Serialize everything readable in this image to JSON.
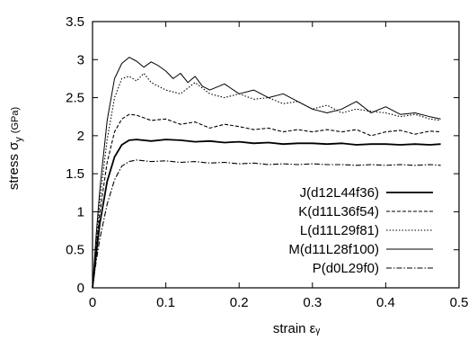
{
  "chart_data": {
    "type": "line",
    "title": "",
    "xlabel": "strain  εᵧ",
    "ylabel_main": "stress  σ",
    "ylabel_sub": "y",
    "ylabel_unit": "(GPa)",
    "xlim": [
      0,
      0.5
    ],
    "ylim": [
      0,
      3.5
    ],
    "xticks": [
      0,
      0.1,
      0.2,
      0.3,
      0.4,
      0.5
    ],
    "xtick_labels": [
      "0",
      "0.1",
      "0.2",
      "0.3",
      "0.4",
      "0.5"
    ],
    "yticks": [
      0,
      0.5,
      1,
      1.5,
      2,
      2.5,
      3,
      3.5
    ],
    "ytick_labels": [
      "0",
      "0.5",
      "1",
      "1.5",
      "2",
      "2.5",
      "3",
      "3.5"
    ],
    "grid": false,
    "legend_position": "bottom-right",
    "series": [
      {
        "name": "J(d12L44f36)",
        "color": "#000000",
        "dash": "solid",
        "x": [
          0,
          0.005,
          0.01,
          0.02,
          0.03,
          0.04,
          0.05,
          0.06,
          0.08,
          0.1,
          0.12,
          0.14,
          0.16,
          0.18,
          0.2,
          0.22,
          0.24,
          0.26,
          0.28,
          0.3,
          0.32,
          0.34,
          0.36,
          0.38,
          0.4,
          0.42,
          0.44,
          0.46,
          0.475
        ],
        "y": [
          0,
          0.45,
          0.85,
          1.4,
          1.72,
          1.88,
          1.94,
          1.95,
          1.93,
          1.95,
          1.94,
          1.92,
          1.93,
          1.91,
          1.92,
          1.9,
          1.91,
          1.89,
          1.9,
          1.9,
          1.89,
          1.9,
          1.88,
          1.89,
          1.89,
          1.88,
          1.89,
          1.88,
          1.89
        ]
      },
      {
        "name": "K(d11L36f54)",
        "color": "#000000",
        "dash": "4,2",
        "x": [
          0,
          0.005,
          0.01,
          0.02,
          0.03,
          0.04,
          0.05,
          0.06,
          0.08,
          0.1,
          0.12,
          0.14,
          0.16,
          0.18,
          0.2,
          0.22,
          0.24,
          0.26,
          0.28,
          0.3,
          0.32,
          0.34,
          0.36,
          0.38,
          0.4,
          0.42,
          0.44,
          0.46,
          0.475
        ],
        "y": [
          0,
          0.55,
          1.0,
          1.65,
          2.05,
          2.22,
          2.28,
          2.27,
          2.2,
          2.22,
          2.15,
          2.18,
          2.1,
          2.15,
          2.12,
          2.08,
          2.1,
          2.05,
          2.08,
          2.05,
          2.08,
          2.05,
          2.08,
          2.0,
          2.05,
          2.07,
          2.02,
          2.06,
          2.05
        ]
      },
      {
        "name": "L(d11L29f81)",
        "color": "#000000",
        "dash": "1.5,2",
        "x": [
          0,
          0.005,
          0.01,
          0.02,
          0.03,
          0.04,
          0.05,
          0.06,
          0.07,
          0.08,
          0.09,
          0.1,
          0.12,
          0.14,
          0.16,
          0.18,
          0.2,
          0.22,
          0.24,
          0.26,
          0.28,
          0.3,
          0.32,
          0.34,
          0.36,
          0.38,
          0.4,
          0.42,
          0.44,
          0.46,
          0.475
        ],
        "y": [
          0,
          0.6,
          1.15,
          1.95,
          2.5,
          2.75,
          2.78,
          2.72,
          2.82,
          2.7,
          2.65,
          2.6,
          2.55,
          2.7,
          2.55,
          2.5,
          2.55,
          2.48,
          2.5,
          2.42,
          2.45,
          2.35,
          2.4,
          2.3,
          2.35,
          2.32,
          2.3,
          2.25,
          2.28,
          2.22,
          2.2
        ]
      },
      {
        "name": "M(d11L28f100)",
        "color": "#000000",
        "dash": "solid-thin",
        "x": [
          0,
          0.005,
          0.01,
          0.02,
          0.03,
          0.04,
          0.05,
          0.06,
          0.07,
          0.08,
          0.09,
          0.1,
          0.11,
          0.12,
          0.13,
          0.14,
          0.15,
          0.16,
          0.18,
          0.2,
          0.22,
          0.24,
          0.26,
          0.28,
          0.3,
          0.32,
          0.34,
          0.36,
          0.38,
          0.4,
          0.42,
          0.44,
          0.46,
          0.475
        ],
        "y": [
          0,
          0.7,
          1.3,
          2.2,
          2.75,
          2.95,
          3.03,
          2.98,
          2.9,
          2.97,
          2.92,
          2.85,
          2.75,
          2.82,
          2.7,
          2.78,
          2.65,
          2.6,
          2.68,
          2.55,
          2.6,
          2.5,
          2.55,
          2.45,
          2.35,
          2.3,
          2.35,
          2.45,
          2.3,
          2.38,
          2.28,
          2.3,
          2.25,
          2.22
        ]
      },
      {
        "name": "P(d0L29f0)",
        "color": "#000000",
        "dash": "6,2,1.5,2",
        "x": [
          0,
          0.005,
          0.01,
          0.02,
          0.03,
          0.04,
          0.05,
          0.06,
          0.08,
          0.1,
          0.12,
          0.14,
          0.16,
          0.18,
          0.2,
          0.22,
          0.24,
          0.26,
          0.28,
          0.3,
          0.32,
          0.34,
          0.36,
          0.38,
          0.4,
          0.42,
          0.44,
          0.46,
          0.475
        ],
        "y": [
          0,
          0.35,
          0.65,
          1.1,
          1.42,
          1.6,
          1.66,
          1.68,
          1.66,
          1.67,
          1.65,
          1.66,
          1.64,
          1.65,
          1.63,
          1.64,
          1.62,
          1.63,
          1.62,
          1.63,
          1.62,
          1.62,
          1.61,
          1.62,
          1.61,
          1.62,
          1.61,
          1.62,
          1.61
        ]
      }
    ]
  }
}
